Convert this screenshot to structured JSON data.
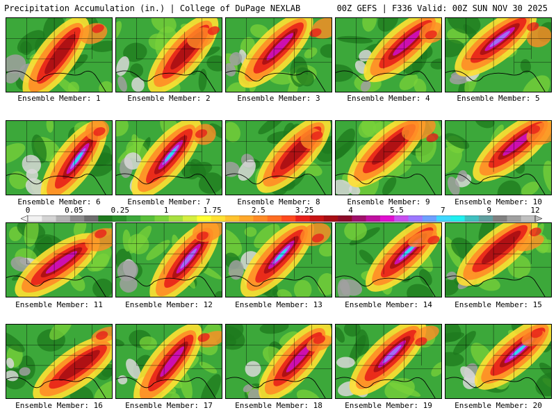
{
  "header": {
    "left": "Precipitation Accumulation (in.) | College of DuPage NEXLAB",
    "right": "00Z GEFS | F336 Valid: 00Z SUN NOV 30 2025"
  },
  "member_prefix": "Ensemble Member: ",
  "members": [
    "1",
    "2",
    "3",
    "4",
    "5",
    "6",
    "7",
    "8",
    "9",
    "10",
    "11",
    "12",
    "13",
    "14",
    "15",
    "16",
    "17",
    "18",
    "19",
    "20"
  ],
  "colorbar": {
    "ticks": [
      "0",
      "0.05",
      "0.25",
      "1",
      "1.75",
      "2.5",
      "3.25",
      "4",
      "5.5",
      "7",
      "9",
      "12"
    ],
    "colors": [
      "#f2f2f2",
      "#d4d4d4",
      "#b4b4b4",
      "#8c8c8c",
      "#6e6e6e",
      "#1e7a1e",
      "#2a8f2a",
      "#3ca83a",
      "#58bf3a",
      "#7ad23a",
      "#a8e040",
      "#d4ee40",
      "#ffff33",
      "#ffe033",
      "#ffc32e",
      "#ffa82a",
      "#ff8c26",
      "#ff6e22",
      "#ff4a1e",
      "#e8201a",
      "#c81414",
      "#a80e14",
      "#8c0a28",
      "#a0106a",
      "#c010a0",
      "#e010d0",
      "#c850f0",
      "#9c78ff",
      "#6ea0ff",
      "#40d8ff",
      "#20f0f0",
      "#40c0c0",
      "#60a0a0",
      "#808080",
      "#a0a0a0",
      "#c0c0c0"
    ]
  },
  "map_palette": {
    "land_base": "#3ca83a",
    "dark_green": "#1e7a1e",
    "light_green": "#7ad23a",
    "yellow": "#ffe033",
    "orange": "#ff8c26",
    "red": "#e8201a",
    "dark_red": "#a80e14",
    "magenta": "#d010c0",
    "violet": "#9c78ff",
    "cyan": "#20e8f0",
    "gray": "#a0a0a0",
    "light_gray": "#d8d8d8"
  }
}
